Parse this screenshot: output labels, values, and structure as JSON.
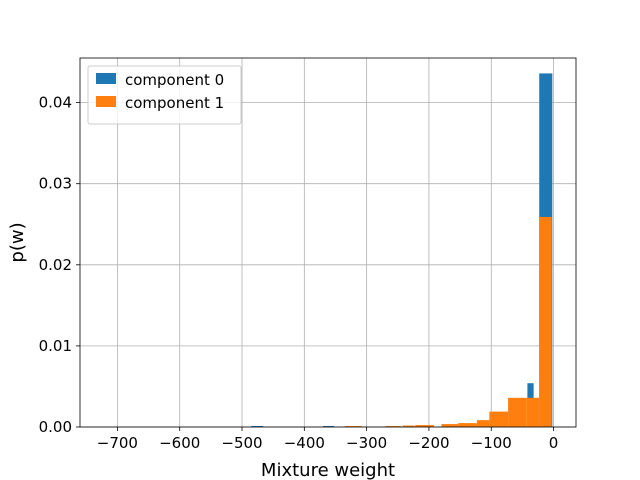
{
  "chart_data": {
    "type": "bar",
    "title": "",
    "xlabel": "Mixture weight",
    "ylabel": "p(w)",
    "xlim": [
      -760,
      36
    ],
    "ylim": [
      0,
      0.0455
    ],
    "xticks": [
      -700,
      -600,
      -500,
      -400,
      -300,
      -200,
      -100,
      0
    ],
    "xtick_labels": [
      "−700",
      "−600",
      "−500",
      "−400",
      "−300",
      "−200",
      "−100",
      "0"
    ],
    "yticks": [
      0,
      0.01,
      0.02,
      0.03,
      0.04
    ],
    "ytick_labels": [
      "0.00",
      "0.01",
      "0.02",
      "0.03",
      "0.04"
    ],
    "grid": true,
    "legend_position": "top-left",
    "series": [
      {
        "name": "component 0",
        "color": "#1f77b4",
        "bins": [
          {
            "x0": -485,
            "x1": -466,
            "y": 0.00012
          },
          {
            "x0": -370,
            "x1": -352,
            "y": 0.00012
          },
          {
            "x0": -155,
            "x1": -136,
            "y": 0.00012
          },
          {
            "x0": -42,
            "x1": -32,
            "y": 0.0054
          },
          {
            "x0": -23,
            "x1": -2,
            "y": 0.0436
          }
        ]
      },
      {
        "name": "component 1",
        "color": "#ff7f0e",
        "bins": [
          {
            "x0": -335,
            "x1": -308,
            "y": 0.00012
          },
          {
            "x0": -270,
            "x1": -245,
            "y": 0.00012
          },
          {
            "x0": -242,
            "x1": -223,
            "y": 0.00018
          },
          {
            "x0": -222,
            "x1": -192,
            "y": 0.00024
          },
          {
            "x0": -180,
            "x1": -153,
            "y": 0.00036
          },
          {
            "x0": -153,
            "x1": -123,
            "y": 0.00048
          },
          {
            "x0": -123,
            "x1": -103,
            "y": 0.00085
          },
          {
            "x0": -103,
            "x1": -73,
            "y": 0.0019
          },
          {
            "x0": -73,
            "x1": -43,
            "y": 0.0036
          },
          {
            "x0": -43,
            "x1": -23,
            "y": 0.0036
          },
          {
            "x0": -23,
            "x1": -3,
            "y": 0.0259
          }
        ]
      }
    ]
  }
}
